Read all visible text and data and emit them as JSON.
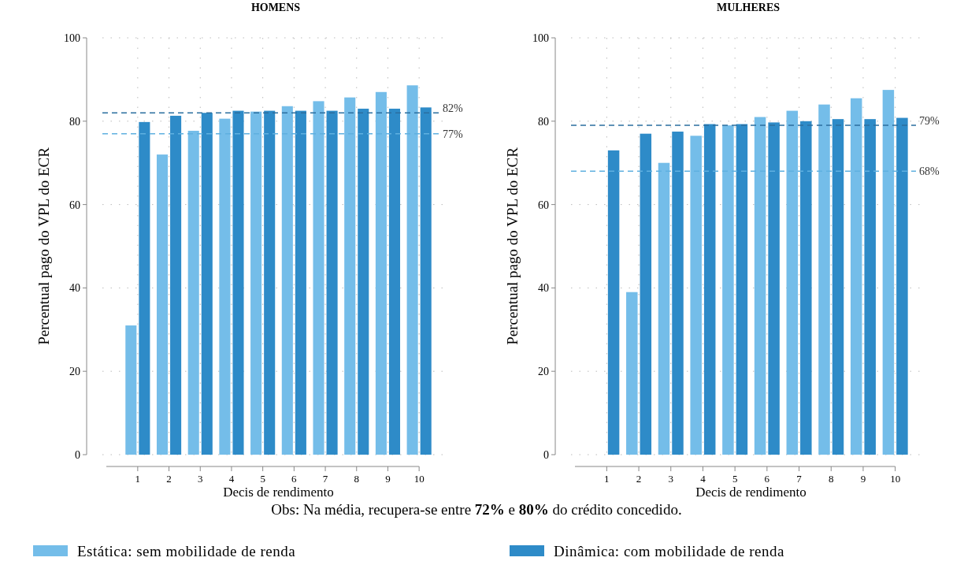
{
  "chart_data": [
    {
      "type": "bar",
      "title": "HOMENS",
      "xlabel": "Decis de rendimento",
      "ylabel": "Percentual pago do VPL do ECR",
      "categories": [
        "1",
        "2",
        "3",
        "4",
        "5",
        "6",
        "7",
        "8",
        "9",
        "10"
      ],
      "series": [
        {
          "name": "Estática: sem mobilidade de renda",
          "color": "#74bde9",
          "values": [
            31,
            72,
            77.7,
            80.6,
            82.3,
            83.6,
            84.8,
            85.7,
            87,
            88.6
          ]
        },
        {
          "name": "Dinâmica: com mobilidade de renda",
          "color": "#2e8bc8",
          "values": [
            79.8,
            81.3,
            82,
            82.5,
            82.5,
            82.5,
            82.5,
            83,
            83,
            83.3
          ]
        }
      ],
      "ylim": [
        0,
        100
      ],
      "yticks": [
        0,
        20,
        40,
        60,
        80,
        100
      ],
      "grid": true,
      "legend": "bottom",
      "ref_lines": [
        {
          "axis": "y",
          "value": 82,
          "label": "82%",
          "color": "#2b6f9f",
          "line_style": "dashed"
        },
        {
          "axis": "y",
          "value": 77,
          "label": "77%",
          "color": "#5fb0e0",
          "line_style": "dashed"
        }
      ],
      "annotations": [
        "Obs: Na média, recupera-se entre 72% e 80% do crédito concedido."
      ]
    },
    {
      "type": "bar",
      "title": "MULHERES",
      "xlabel": "Decis de rendimento",
      "ylabel": "Percentual pago do VPL do ECR",
      "categories": [
        "1",
        "2",
        "3",
        "4",
        "5",
        "6",
        "7",
        "8",
        "9",
        "10"
      ],
      "series": [
        {
          "color": "#74bde9",
          "values": [
            null,
            39,
            70,
            76.5,
            79,
            81,
            82.5,
            84,
            85.5,
            87.5
          ]
        },
        {
          "color": "#2e8bc8",
          "values": [
            73,
            77,
            77.5,
            79.3,
            79.3,
            79.7,
            80,
            80.5,
            80.5,
            80.8
          ]
        }
      ],
      "ylim": [
        0,
        100
      ],
      "yticks": [
        0,
        20,
        40,
        60,
        80,
        100
      ],
      "grid": true,
      "ref_lines": [
        {
          "axis": "y",
          "value": 79,
          "label": "79%",
          "color": "#2b6f9f",
          "line_style": "dashed"
        },
        {
          "axis": "y",
          "value": 68,
          "label": "68%",
          "color": "#5fb0e0",
          "line_style": "dashed"
        }
      ]
    }
  ]
}
